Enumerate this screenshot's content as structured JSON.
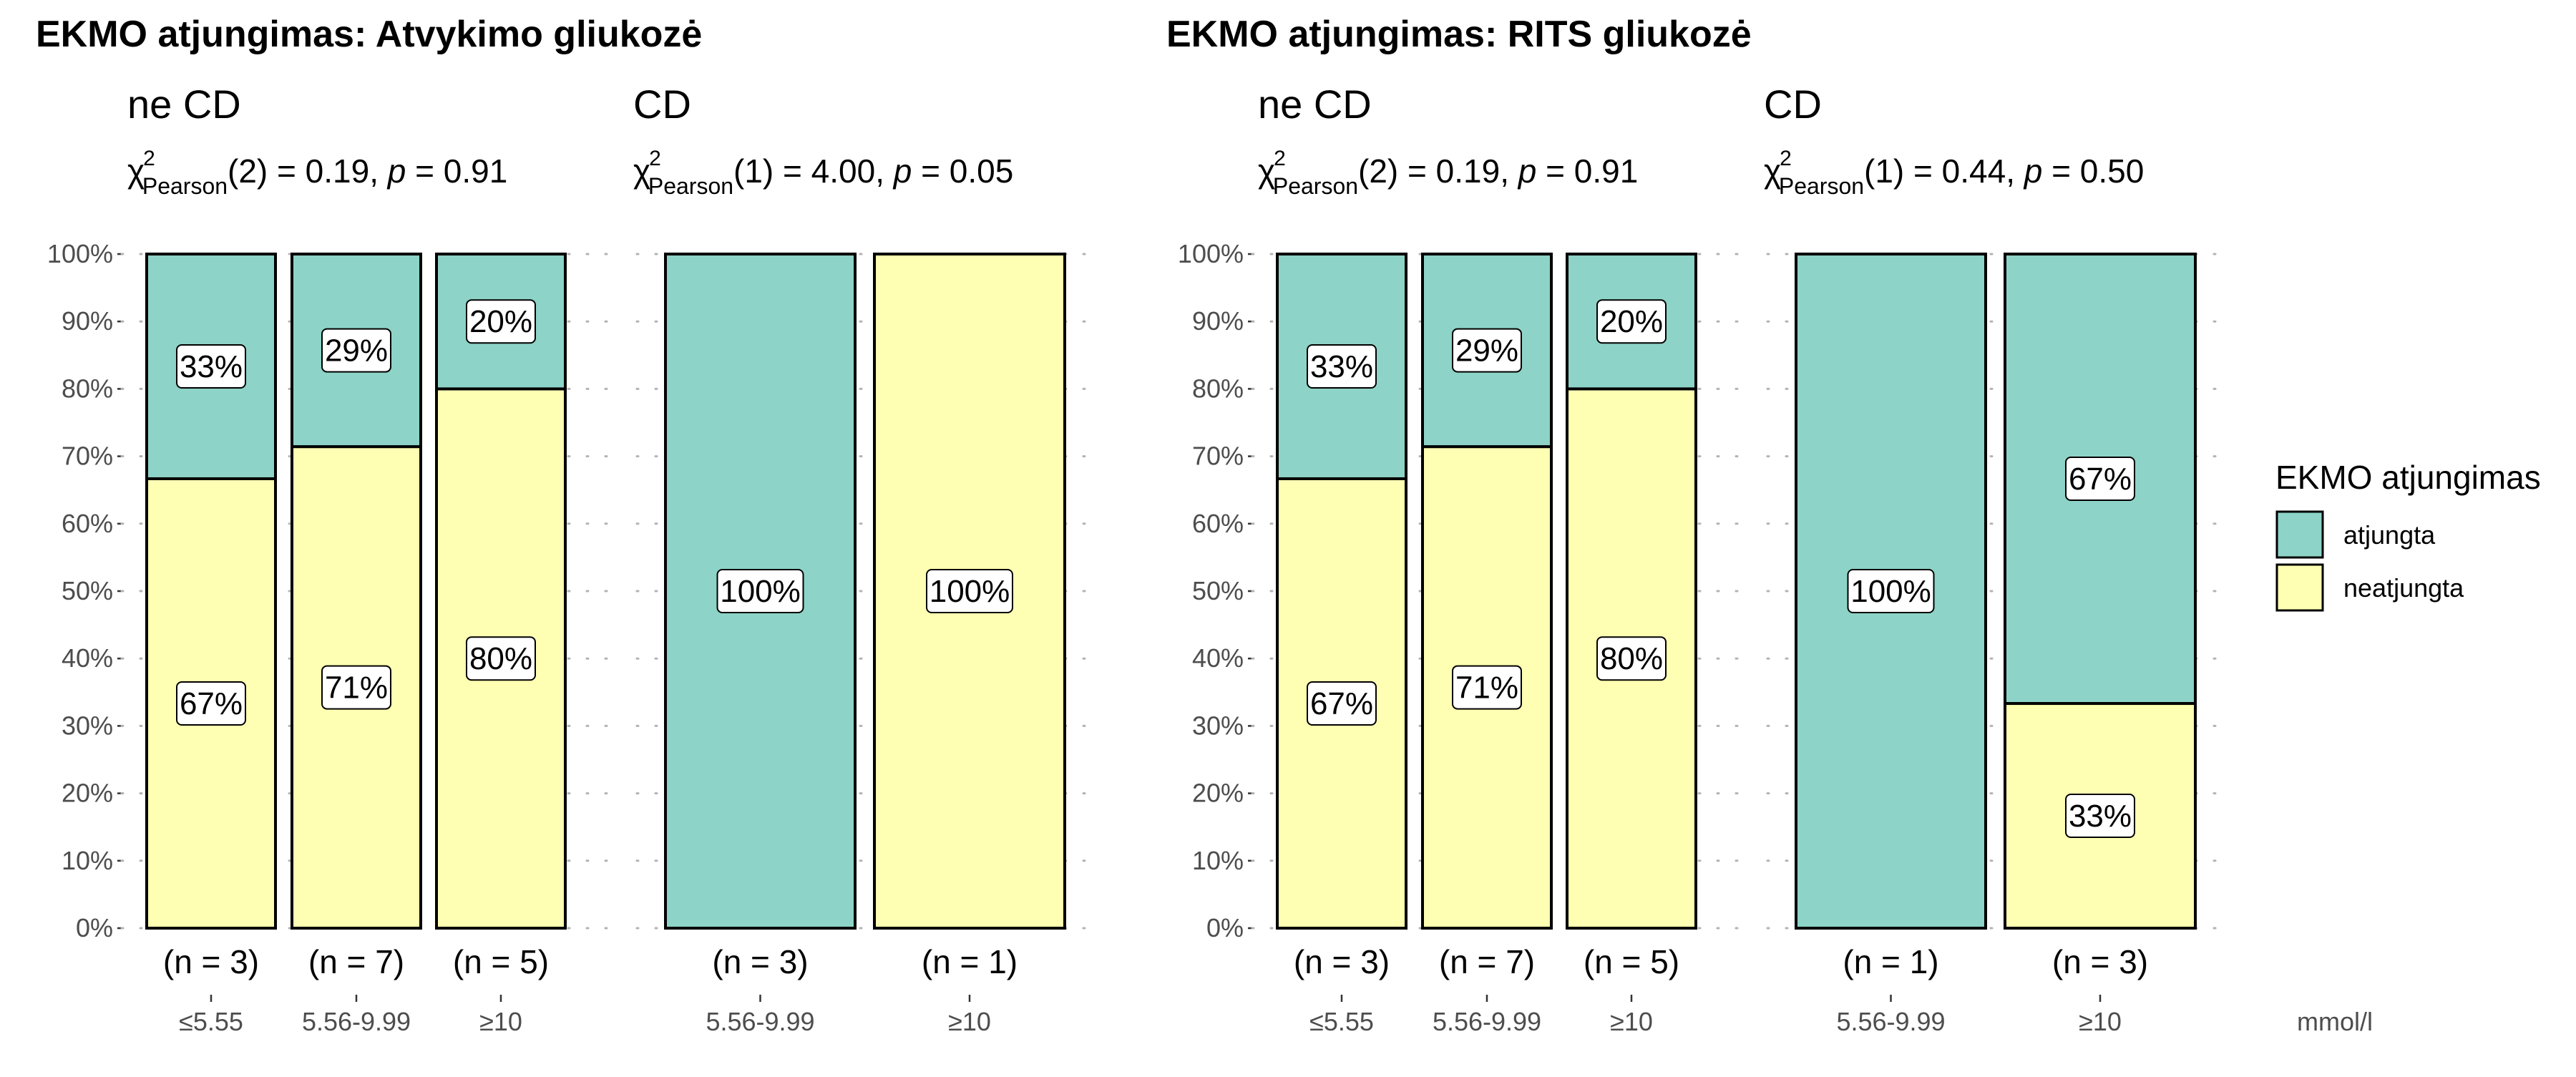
{
  "chart_data": [
    {
      "type": "bar",
      "stacked": true,
      "percent": true,
      "title": "EKMO atjungimas: Atvykimo gliukozė",
      "ylim": [
        0,
        100
      ],
      "yticks": [
        "0%",
        "10%",
        "20%",
        "30%",
        "40%",
        "50%",
        "60%",
        "70%",
        "80%",
        "90%",
        "100%"
      ],
      "grid": "dotted horizontal",
      "panels": [
        {
          "title": "ne CD",
          "stat": {
            "df": "2",
            "chi2": "0.19",
            "p": "0.91"
          },
          "categories": [
            "≤5.55",
            "5.56-9.99",
            "≥10"
          ],
          "n_labels": [
            "(n = 3)",
            "(n = 7)",
            "(n = 5)"
          ],
          "series": [
            {
              "name": "neatjungta",
              "values": [
                66.67,
                71.43,
                80
              ],
              "labels": [
                "67%",
                "71%",
                "80%"
              ]
            },
            {
              "name": "atjungta",
              "values": [
                33.33,
                28.57,
                20
              ],
              "labels": [
                "33%",
                "29%",
                "20%"
              ]
            }
          ]
        },
        {
          "title": "CD",
          "stat": {
            "df": "1",
            "chi2": "4.00",
            "p": "0.05"
          },
          "categories": [
            "5.56-9.99",
            "≥10"
          ],
          "n_labels": [
            "(n = 3)",
            "(n = 1)"
          ],
          "series": [
            {
              "name": "neatjungta",
              "values": [
                0,
                100
              ],
              "labels": [
                "",
                "100%"
              ]
            },
            {
              "name": "atjungta",
              "values": [
                100,
                0
              ],
              "labels": [
                "100%",
                ""
              ]
            }
          ]
        }
      ]
    },
    {
      "type": "bar",
      "stacked": true,
      "percent": true,
      "title": "EKMO atjungimas: RITS gliukozė",
      "ylim": [
        0,
        100
      ],
      "yticks": [
        "0%",
        "10%",
        "20%",
        "30%",
        "40%",
        "50%",
        "60%",
        "70%",
        "80%",
        "90%",
        "100%"
      ],
      "grid": "dotted horizontal",
      "panels": [
        {
          "title": "ne CD",
          "stat": {
            "df": "2",
            "chi2": "0.19",
            "p": "0.91"
          },
          "categories": [
            "≤5.55",
            "5.56-9.99",
            "≥10"
          ],
          "n_labels": [
            "(n = 3)",
            "(n = 7)",
            "(n = 5)"
          ],
          "series": [
            {
              "name": "neatjungta",
              "values": [
                66.67,
                71.43,
                80
              ],
              "labels": [
                "67%",
                "71%",
                "80%"
              ]
            },
            {
              "name": "atjungta",
              "values": [
                33.33,
                28.57,
                20
              ],
              "labels": [
                "33%",
                "29%",
                "20%"
              ]
            }
          ]
        },
        {
          "title": "CD",
          "stat": {
            "df": "1",
            "chi2": "0.44",
            "p": "0.50"
          },
          "categories": [
            "5.56-9.99",
            "≥10"
          ],
          "n_labels": [
            "(n = 1)",
            "(n = 3)"
          ],
          "series": [
            {
              "name": "neatjungta",
              "values": [
                0,
                33.33
              ],
              "labels": [
                "",
                "33%"
              ]
            },
            {
              "name": "atjungta",
              "values": [
                100,
                66.67
              ],
              "labels": [
                "100%",
                "67%"
              ]
            }
          ]
        }
      ]
    }
  ],
  "stat_label": {
    "chi": "χ",
    "sup": "2",
    "sub": "Pearson",
    "p_letter": "p"
  },
  "legend": {
    "title": "EKMO atjungimas",
    "position": "right",
    "items": [
      {
        "label": "atjungta",
        "color": "#8DD3C7"
      },
      {
        "label": "neatjungta",
        "color": "#FFFFB3"
      }
    ]
  },
  "unit_label": "mmol/l",
  "colors": {
    "atjungta": "#8DD3C7",
    "neatjungta": "#FFFFB3",
    "text": "#000000",
    "axis_text": "#4d4d4d",
    "grid": "#b3b3b3"
  }
}
